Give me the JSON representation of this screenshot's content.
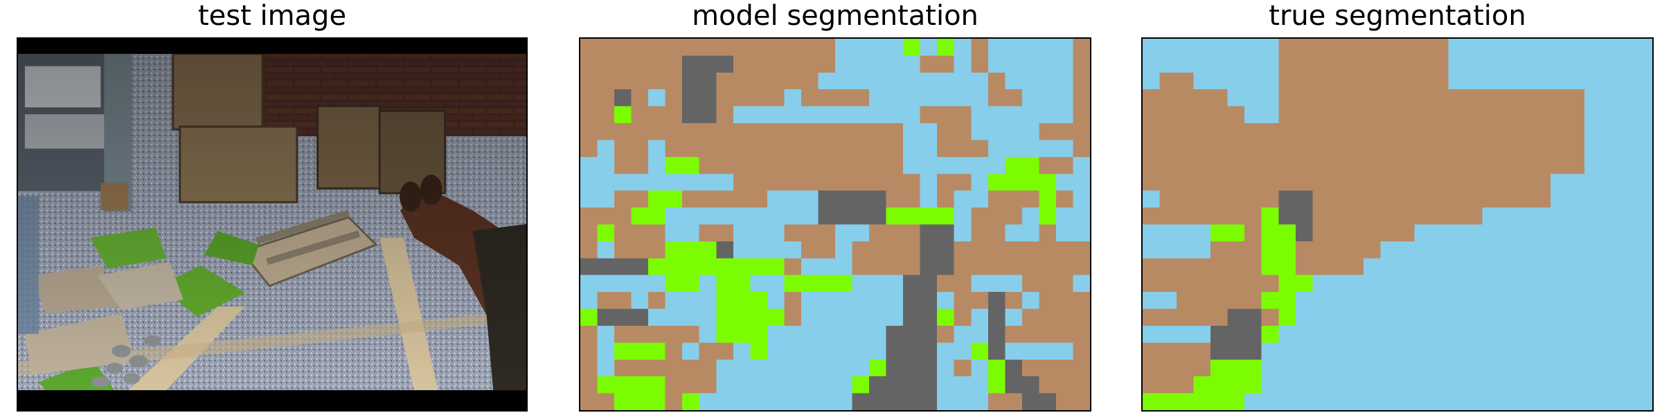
{
  "panels": [
    {
      "id": "test",
      "title": "test image"
    },
    {
      "id": "model",
      "title": "model segmentation"
    },
    {
      "id": "true",
      "title": "true segmentation"
    }
  ],
  "legend_colors": {
    "sky_blue": "#87CEEB",
    "brown": "#B88A64",
    "gray": "#646464",
    "green": "#7CFC00"
  },
  "grid": {
    "cols": 30,
    "rows": 22
  },
  "model_segmentation": [
    "BBBBBBBBBBBBBBBSSSSGSGSBSSSSSB",
    "BBBBBBGGGBBBBBBSSSSSBBSBSSSSSB",
    "BBBBBBGGBBBBBBSSSSSSSSSSBSSSSB",
    "BBSBSBGGBBBBSBBBBSSSSSSSBBSSSB",
    "BBGBBBGGBSSSSSSSSSSSBBBSSSSSSB",
    "BBBBBBBBBBBBBBBBBBBSSBBSSSSBBB",
    "BSBBSBBBBBBBBBBBBBBSSBBBSSSSSB",
    "SSBBSGGBBBBBBBBBBBBSSSSSSGGBBS",
    "SSSSSSSSSBBBBBBBBBBBSBBSGGGGSS",
    "SSBBGGBBBBBSSSSSSSBBSBSSBBBGBS",
    "BBBGGSSSSSSSSSSSSGGGGGSBBBSGSS",
    "BGBBBSSBBSSSBBBSSBBBBBSBBSSBSS",
    "BSBBBGGGGSSSSBBSBBBBBBBBBBBBBB",
    "SSBGGGGGGGGGBSSSBBBBBBBBBBBBBB",
    "SSSSSGGSGGSSGGGGSSSBBBBSSSBBBS",
    "SBBSBSSSGGGSBSSSSSSSSSBBBBSBBB",
    "GGGGSSSSGGGGBSSSSSSGGGBSSSBBBB",
    "BSBBBBBSGGGSSSSSSSSSBBSSBBBBBB",
    "BSGGGBSBBSGSSSSSSSBBBSSGSSSSSB",
    "BSBBBBBBSSSSSSSSSGGGGSBSGSBBBB",
    "BGGGGBBBSSSSSSSSGGGGGSSSGGSBBB",
    "BBGGGBGSSSSSSSSSGGGGGSSSBBSBBB"
  ],
  "true_segmentation": [
    "SSSSSSSSBBBBBBBBBBSSSSSSSSSSSS",
    "SSSSSSSSBBBBBBBBBBSSSSSSSSSSSS",
    "SBBSSSSSBBBBBBBBBBSSSSSSSSSSSS",
    "BBBBBSSSBBBBBBBBBBBBBBBBBBSSSS",
    "BBBBBBSSBBBBBBBBBBBBBBBBBBSSSS",
    "BBBBBBBBBBBBBBBBBBBBBBBBBBSSSS",
    "BBBBBBBBBBBBBBBBBBBBBBBBBBSSSS",
    "BBBBBBBBBBBBBBBBBBBBBBBBBBSSSS",
    "BBBBBBBBBBBBBBBBBBBBBBBBSSSSSS",
    "SBBBBBBBBBBBBBBBBBBBBBBBSSSSSS",
    "BBBBBBBGGGBBBBBBBBBBSSSSSSSSSS",
    "SSSSGGBGGBBBBBBBSSSSSSSSSSSSSS",
    "SSSSBBBGGBBBBBSSSSSSSSSSSSSSSS",
    "BBBBBBBGGBBBBSSSSSSSSSSSSSSSSS",
    "BBBBBBBBGGSSSSSSSSSSSSSSSSSSSS",
    "SSBBBBBGGSSSSSSSSSSSSSSSSSSSSS",
    "BBBBBBBBGSSSSSSSSSSSSSSSSSSSSS",
    "SSSSBBSGSSSSSSSSSSSSSSSSSSSSSS",
    "BBBBBBSSSSSSSSSSSSSSSSSSSSSSSS",
    "BBBBGGGSSSSSSSSSSSSSSSSSSSSSSS",
    "BBBGGGGSSSSSSSSSSSSSSSSSSSSSSS",
    "GGGGGGSSSSSSSSSSSSSSSSSSSSSSSS"
  ]
}
